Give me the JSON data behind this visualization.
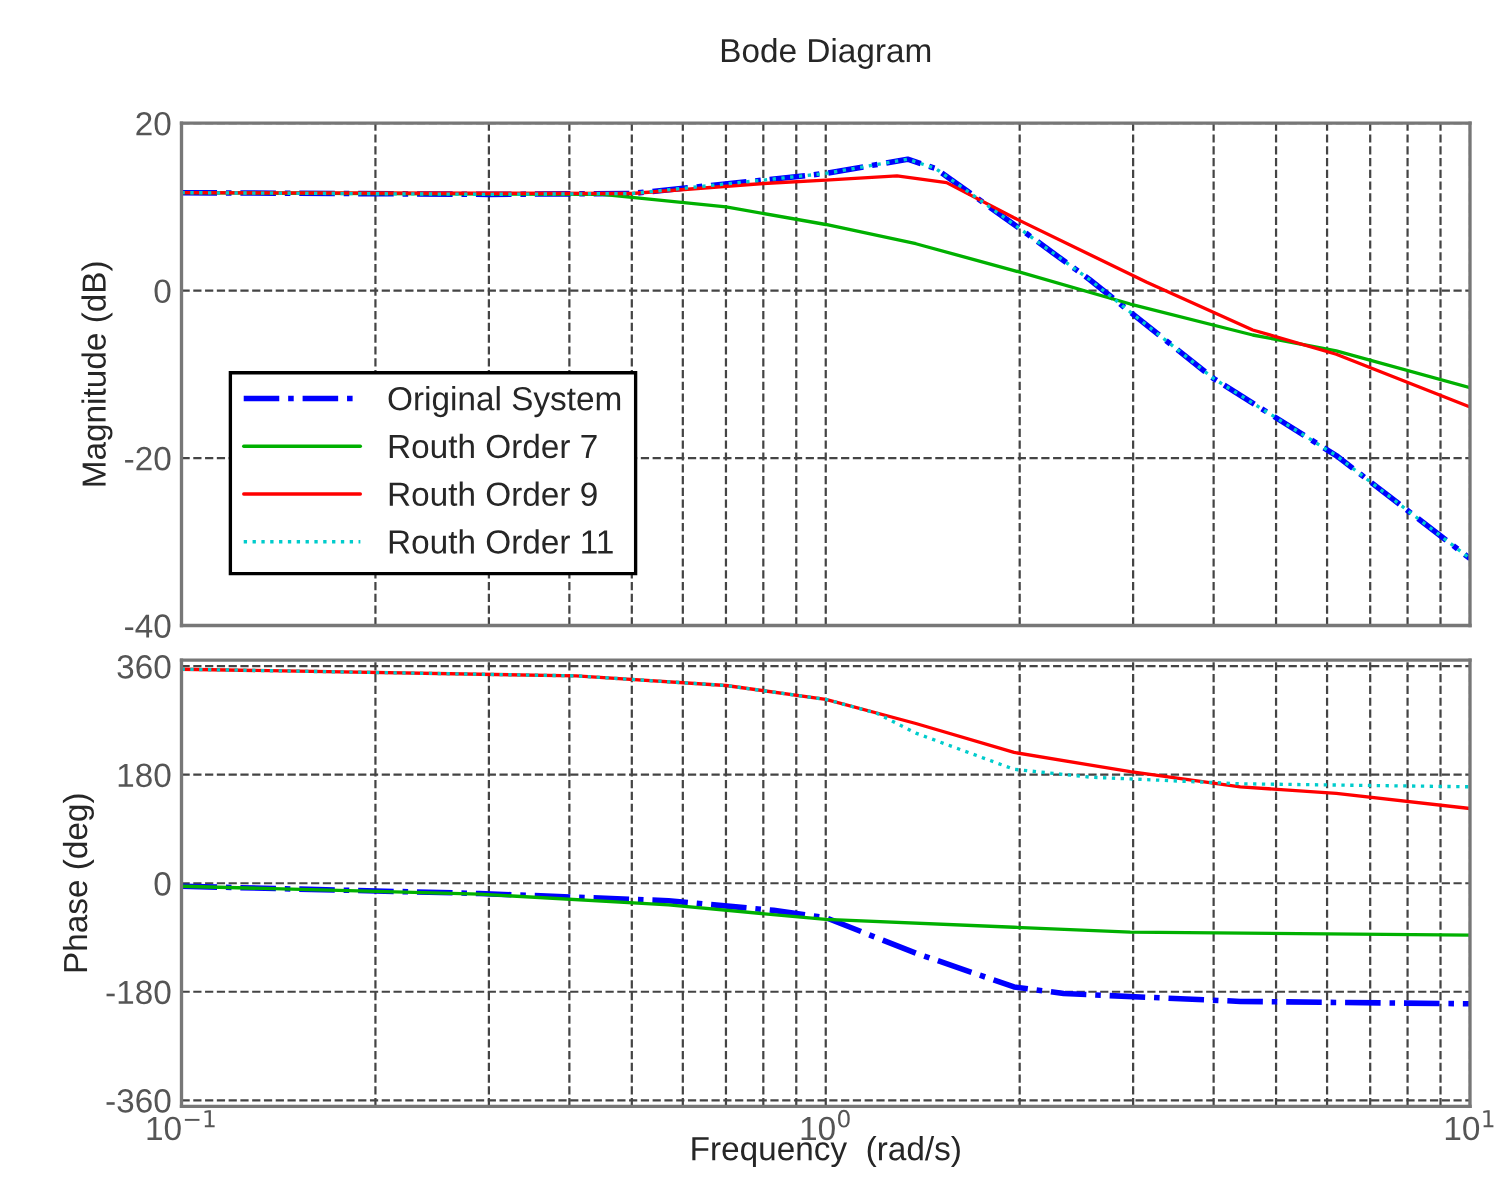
{
  "chart_data": [
    {
      "type": "line",
      "title": "Bode Diagram",
      "ylabel": "Magnitude (dB)",
      "xlim": [
        0.1,
        10
      ],
      "ylim": [
        -40,
        20
      ],
      "log": "x",
      "xticks": [
        {
          "value": 0.1,
          "label": null
        },
        {
          "value": 0.2,
          "label": null
        },
        {
          "value": 0.3,
          "label": null
        },
        {
          "value": 0.4,
          "label": null
        },
        {
          "value": 0.5,
          "label": null
        },
        {
          "value": 0.6,
          "label": null
        },
        {
          "value": 0.7,
          "label": null
        },
        {
          "value": 0.8,
          "label": null
        },
        {
          "value": 0.9,
          "label": null
        },
        {
          "value": 1,
          "label": null
        },
        {
          "value": 2,
          "label": null
        },
        {
          "value": 3,
          "label": null
        },
        {
          "value": 4,
          "label": null
        },
        {
          "value": 5,
          "label": null
        },
        {
          "value": 6,
          "label": null
        },
        {
          "value": 7,
          "label": null
        },
        {
          "value": 8,
          "label": null
        },
        {
          "value": 9,
          "label": null
        },
        {
          "value": 10,
          "label": null
        }
      ],
      "yticks": [
        20,
        0,
        -20,
        -40
      ],
      "grid": true,
      "legend": "bottom left",
      "tick_labels": "y",
      "series": [
        {
          "name": "Original System",
          "color": "#0000ff",
          "line_style": "dashdot",
          "x": [
            0.1,
            0.3,
            0.5,
            0.8,
            1.0,
            1.34,
            1.48,
            1.96,
            2.57,
            4.0,
            6.2,
            10
          ],
          "values": [
            11.7,
            11.5,
            11.6,
            13.2,
            14.0,
            15.7,
            14.6,
            7.9,
            1.3,
            -10.5,
            -19.7,
            -32
          ]
        },
        {
          "name": "Routh Order 7",
          "color": "#00b000",
          "line_style": "solid",
          "x": [
            0.1,
            0.45,
            0.7,
            1.0,
            1.38,
            1.96,
            2.97,
            4.6,
            6.2,
            10
          ],
          "values": [
            11.7,
            11.5,
            10.0,
            7.9,
            5.6,
            2.4,
            -1.6,
            -5.3,
            -7.2,
            -11.6
          ]
        },
        {
          "name": "Routh Order 9",
          "color": "#ff0000",
          "line_style": "solid",
          "x": [
            0.1,
            0.5,
            0.8,
            1.0,
            1.29,
            1.54,
            1.96,
            3.15,
            4.6,
            6.2,
            10
          ],
          "values": [
            11.7,
            11.6,
            12.8,
            13.2,
            13.7,
            12.9,
            8.7,
            1.0,
            -4.7,
            -7.6,
            -13.9
          ]
        },
        {
          "name": "Routh Order 11",
          "color": "#00cccc",
          "line_style": "dotted",
          "x": [
            0.1,
            0.3,
            0.5,
            0.8,
            1.0,
            1.34,
            1.48,
            1.96,
            2.57,
            4.0,
            6.2,
            10
          ],
          "values": [
            11.7,
            11.5,
            11.6,
            13.2,
            14.0,
            15.7,
            14.6,
            7.9,
            1.3,
            -10.5,
            -19.7,
            -32
          ]
        }
      ]
    },
    {
      "type": "line",
      "xlabel": "Frequency  (rad/s)",
      "ylabel": "Phase (deg)",
      "xlim": [
        0.1,
        10
      ],
      "ylim": [
        -370,
        370
      ],
      "log": "x",
      "xticks": [
        {
          "value": 0.1,
          "label": "10$^{−1}$"
        },
        {
          "value": 0.2,
          "label": null
        },
        {
          "value": 0.3,
          "label": null
        },
        {
          "value": 0.4,
          "label": null
        },
        {
          "value": 0.5,
          "label": null
        },
        {
          "value": 0.6,
          "label": null
        },
        {
          "value": 0.7,
          "label": null
        },
        {
          "value": 0.8,
          "label": null
        },
        {
          "value": 0.9,
          "label": null
        },
        {
          "value": 1,
          "label": "10$^{0}$"
        },
        {
          "value": 2,
          "label": null
        },
        {
          "value": 3,
          "label": null
        },
        {
          "value": 4,
          "label": null
        },
        {
          "value": 5,
          "label": null
        },
        {
          "value": 6,
          "label": null
        },
        {
          "value": 7,
          "label": null
        },
        {
          "value": 8,
          "label": null
        },
        {
          "value": 9,
          "label": null
        },
        {
          "value": 10,
          "label": "10$^{1}$"
        }
      ],
      "yticks": [
        360,
        180,
        0,
        -180,
        -360
      ],
      "grid": true,
      "series": [
        {
          "color": "#0000ff",
          "line_style": "dashdot",
          "x": [
            0.1,
            0.29,
            0.57,
            0.83,
            1.0,
            1.38,
            1.96,
            2.34,
            4.4,
            10
          ],
          "values": [
            -5,
            -17,
            -29,
            -45,
            -57,
            -116,
            -172,
            -183,
            -196,
            -200
          ]
        },
        {
          "color": "#00b000",
          "line_style": "solid",
          "x": [
            0.1,
            0.29,
            0.57,
            1.0,
            1.96,
            2.97,
            10
          ],
          "values": [
            -5,
            -18,
            -36,
            -60,
            -73,
            -81,
            -86
          ]
        },
        {
          "color": "#ff0000",
          "line_style": "solid",
          "x": [
            0.1,
            0.41,
            0.7,
            1.0,
            1.38,
            1.96,
            2.97,
            4.4,
            6.2,
            10
          ],
          "values": [
            355,
            344,
            328,
            305,
            265,
            217,
            185,
            160,
            149,
            124
          ]
        },
        {
          "color": "#00cccc",
          "line_style": "dotted",
          "x": [
            0.1,
            0.41,
            0.7,
            1.0,
            1.2,
            1.38,
            1.96,
            2.57,
            4.4,
            10
          ],
          "values": [
            355,
            344,
            328,
            305,
            282,
            249,
            189,
            176,
            165,
            160
          ]
        }
      ]
    }
  ]
}
